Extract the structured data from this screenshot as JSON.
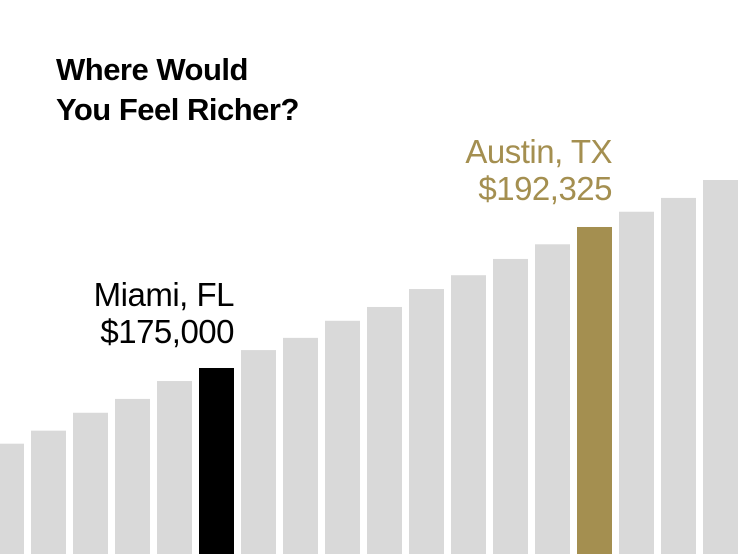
{
  "chart_data": {
    "type": "bar",
    "title_lines": [
      "Where Would",
      "You Feel Richer?"
    ],
    "xlabel": "",
    "ylabel": "",
    "grid": false,
    "ylim": [
      152146,
      220216
    ],
    "values": [
      165700,
      167300,
      169500,
      171200,
      173400,
      175000,
      177200,
      178700,
      180800,
      182500,
      184700,
      186400,
      188400,
      190200,
      192325,
      194200,
      195900,
      198100
    ],
    "highlights": [
      {
        "index": 5,
        "city": "Miami, FL",
        "value_label": "$175,000",
        "color": "#000000"
      },
      {
        "index": 14,
        "city": "Austin, TX",
        "value_label": "$192,325",
        "color": "#a48f50"
      }
    ],
    "default_color": "#d9d9d9"
  }
}
